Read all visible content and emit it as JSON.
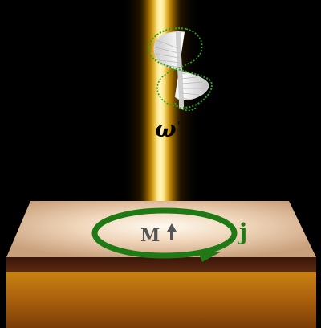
{
  "labels": {
    "omega": "ω",
    "magnetization": "M",
    "current": "j"
  },
  "colors": {
    "background": "#000000",
    "beam_core": "#fff3b0",
    "beam_glow": "#ffb400",
    "plate_top": "#f2d9bf",
    "plate_edge": "#4a1f10",
    "substrate": "#b46a10",
    "current_loop": "#1f7a16",
    "helix_wire": "#2ea31f"
  },
  "icons": {
    "helix": "circular-polarization-helix-icon",
    "magnetization_arrow": "up-arrow-icon"
  }
}
